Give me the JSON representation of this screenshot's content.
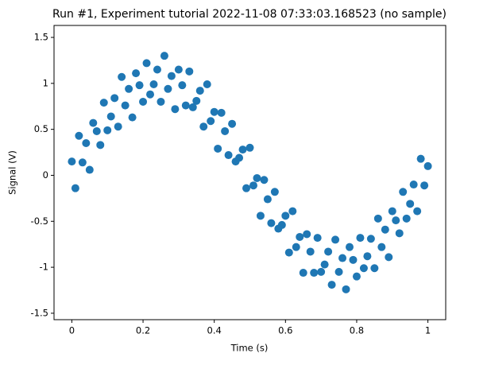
{
  "chart_data": {
    "type": "scatter",
    "title": "Run #1, Experiment tutorial 2022-11-08 07:33:03.168523 (no sample)",
    "x_label": "Time (s)",
    "y_label": "Signal (V)",
    "color": "#1f77b4",
    "xlim": [
      -0.05,
      1.05
    ],
    "xticks": [
      0,
      0.2,
      0.4,
      0.6,
      0.8,
      1
    ],
    "ylim": [
      -1.57,
      1.63
    ],
    "yticks": [
      -1.5,
      -1,
      -0.5,
      0,
      0.5,
      1,
      1.5
    ],
    "x": [
      0,
      0.01,
      0.02,
      0.03,
      0.04,
      0.05,
      0.06,
      0.07,
      0.08,
      0.09,
      0.1,
      0.11,
      0.12,
      0.13,
      0.14,
      0.15,
      0.16,
      0.17,
      0.18,
      0.19,
      0.2,
      0.21,
      0.22,
      0.23,
      0.24,
      0.25,
      0.26,
      0.27,
      0.28,
      0.29,
      0.3,
      0.31,
      0.32,
      0.33,
      0.34,
      0.35,
      0.36,
      0.37,
      0.38,
      0.39,
      0.4,
      0.41,
      0.42,
      0.43,
      0.44,
      0.45,
      0.46,
      0.47,
      0.48,
      0.49,
      0.5,
      0.51,
      0.52,
      0.53,
      0.54,
      0.55,
      0.56,
      0.57,
      0.58,
      0.59,
      0.6,
      0.61,
      0.62,
      0.63,
      0.64,
      0.65,
      0.66,
      0.67,
      0.68,
      0.69,
      0.7,
      0.71,
      0.72,
      0.73,
      0.74,
      0.75,
      0.76,
      0.77,
      0.78,
      0.79,
      0.8,
      0.81,
      0.82,
      0.83,
      0.84,
      0.85,
      0.86,
      0.87,
      0.88,
      0.89,
      0.9,
      0.91,
      0.92,
      0.93,
      0.94,
      0.95,
      0.96,
      0.97,
      0.98,
      0.99,
      1
    ],
    "values": [
      0.15,
      -0.14,
      0.43,
      0.14,
      0.35,
      0.06,
      0.57,
      0.48,
      0.33,
      0.79,
      0.49,
      0.64,
      0.84,
      0.53,
      1.07,
      0.76,
      0.94,
      0.63,
      1.11,
      0.98,
      0.8,
      1.22,
      0.88,
      0.99,
      1.15,
      0.8,
      1.3,
      0.94,
      1.08,
      0.72,
      1.15,
      0.98,
      0.76,
      1.13,
      0.74,
      0.81,
      0.92,
      0.53,
      0.99,
      0.59,
      0.69,
      0.29,
      0.68,
      0.48,
      0.22,
      0.56,
      0.15,
      0.19,
      0.28,
      -0.14,
      0.3,
      -0.11,
      -0.03,
      -0.44,
      -0.05,
      -0.26,
      -0.52,
      -0.18,
      -0.58,
      -0.54,
      -0.44,
      -0.84,
      -0.39,
      -0.78,
      -0.67,
      -1.06,
      -0.64,
      -0.83,
      -1.06,
      -0.68,
      -1.05,
      -0.97,
      -0.83,
      -1.19,
      -0.7,
      -1.05,
      -0.9,
      -1.24,
      -0.78,
      -0.92,
      -1.1,
      -0.68,
      -1.01,
      -0.88,
      -0.69,
      -1.01,
      -0.47,
      -0.78,
      -0.59,
      -0.89,
      -0.39,
      -0.49,
      -0.63,
      -0.18,
      -0.47,
      -0.31,
      -0.1,
      -0.39,
      0.18,
      -0.11,
      0.1
    ]
  }
}
